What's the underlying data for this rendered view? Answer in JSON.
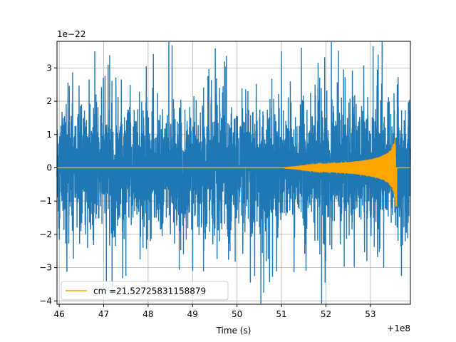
{
  "chart_data": {
    "type": "line",
    "title": "",
    "xlabel": "Time (s)",
    "ylabel": "",
    "x_offset_label": "+1e8",
    "y_scale_label": "1e−22",
    "xlim": [
      45.95,
      53.9
    ],
    "ylim": [
      -4.1,
      3.8
    ],
    "x_ticks": [
      46,
      47,
      48,
      49,
      50,
      51,
      52,
      53
    ],
    "y_ticks": [
      -4,
      -3,
      -2,
      -1,
      0,
      1,
      2,
      3
    ],
    "y_tick_labels": [
      "−4",
      "−3",
      "−2",
      "−1",
      "0",
      "1",
      "2",
      "3"
    ],
    "grid": true,
    "legend_position": "lower-left",
    "series": [
      {
        "name": "",
        "color": "#1f77b4",
        "description": "noisy strain data",
        "envelope_typical": 1.5,
        "envelope_peak": [
          {
            "x": 46.8,
            "y": 3.5
          },
          {
            "x": 51.0,
            "y": 3.5
          },
          {
            "x": 47.1,
            "y": 3.1
          },
          {
            "x": 47.5,
            "y": -3.25
          },
          {
            "x": 50.6,
            "y": -3.75
          },
          {
            "x": 50.3,
            "y": -3.45
          }
        ]
      },
      {
        "name": "cm =21.52725831158879",
        "color": "#ffa500",
        "description": "chirp template",
        "chirp_start": 51.0,
        "merger_time": 53.57,
        "peak_amplitude": 1.15
      }
    ]
  }
}
